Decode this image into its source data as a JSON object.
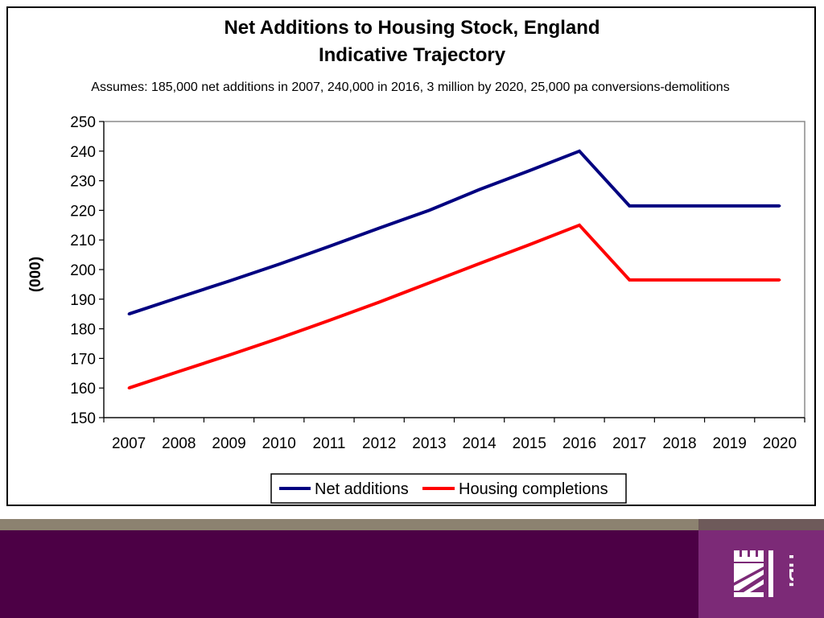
{
  "chart_data": {
    "type": "line",
    "title": "Net Additions to Housing Stock, England",
    "title_line2": "Indicative Trajectory",
    "subtitle": "Assumes: 185,000 net additions in 2007, 240,000 in 2016, 3 million by 2020, 25,000 pa conversions-demolitions",
    "xlabel": "",
    "ylabel": "(000)",
    "categories": [
      "2007",
      "2008",
      "2009",
      "2010",
      "2011",
      "2012",
      "2013",
      "2014",
      "2015",
      "2016",
      "2017",
      "2018",
      "2019",
      "2020"
    ],
    "ylim": [
      150,
      250
    ],
    "yticks": [
      "150",
      "160",
      "170",
      "180",
      "190",
      "200",
      "210",
      "220",
      "230",
      "240",
      "250"
    ],
    "grid": false,
    "legend_position": "bottom",
    "series": [
      {
        "name": "Net additions",
        "color": "#000080",
        "values": [
          185,
          190.6,
          196.1,
          201.8,
          207.8,
          214.0,
          220.0,
          227.0,
          233.4,
          240.0,
          221.5,
          221.5,
          221.5,
          221.5
        ]
      },
      {
        "name": "Housing completions",
        "color": "#ff0000",
        "values": [
          160,
          165.6,
          171.1,
          176.8,
          182.8,
          189.0,
          195.5,
          202.0,
          208.4,
          215.0,
          196.5,
          196.5,
          196.5,
          196.5
        ]
      }
    ]
  },
  "colors": {
    "band_taupe": "#8c8270",
    "band_dark": "#6e5a5a",
    "band_purple": "#4c0045",
    "logo_panel": "#7c2a77"
  },
  "logo": {
    "icon": "hbf-castle-logo",
    "text": "HBF"
  }
}
